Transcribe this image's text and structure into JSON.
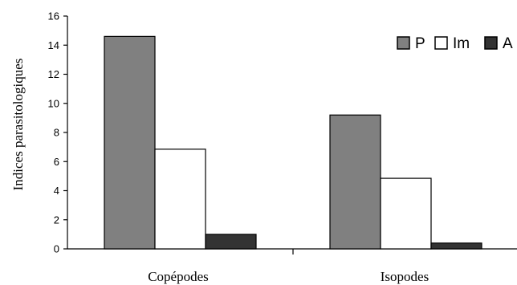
{
  "chart_data": {
    "type": "bar",
    "title": "",
    "xlabel": "",
    "ylabel": "Indices parasitologiques",
    "ylim": [
      0,
      16
    ],
    "yticks": [
      0,
      2,
      4,
      6,
      8,
      10,
      12,
      14,
      16
    ],
    "categories": [
      "Copépodes",
      "Isopodes"
    ],
    "series": [
      {
        "name": "P",
        "values": [
          14.6,
          9.2
        ],
        "color": "#808080"
      },
      {
        "name": "Im",
        "values": [
          6.85,
          4.85
        ],
        "color": "#ffffff"
      },
      {
        "name": "A",
        "values": [
          1.0,
          0.4
        ],
        "color": "#333333"
      }
    ],
    "legend_position": "top-right",
    "grid": false
  }
}
